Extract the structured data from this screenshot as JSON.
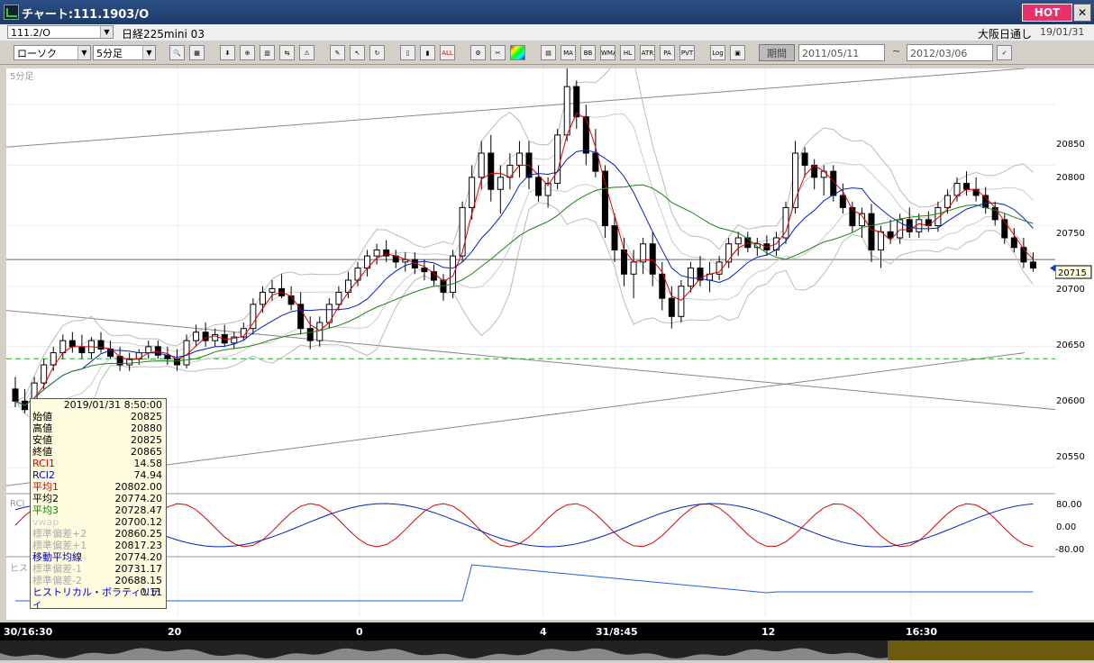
{
  "window": {
    "title": "チャート:111.1903/O",
    "hot_label": "HOT",
    "close_glyph": "✕"
  },
  "header": {
    "symbol_code": "111.2/O",
    "instrument_name": "日経225mini 03",
    "session": "大阪日通し",
    "date": "19/01/31"
  },
  "toolbar": {
    "chart_type": "ローソク",
    "period": "5分足",
    "buttons": [
      "MA",
      "BB",
      "WMA",
      "HL",
      "ATR",
      "PA",
      "PVT",
      "Log",
      "ALL"
    ],
    "period_button": "期間",
    "date_from": "2011/05/11",
    "date_to": "2012/03/06",
    "tilde": "~"
  },
  "chart": {
    "panel_label": "5分足",
    "price_ticks": [
      "20850",
      "20800",
      "20750",
      "20700",
      "20650",
      "20600",
      "20550"
    ],
    "current_price": "20715",
    "rci_label": "RCI",
    "rci_ticks": [
      "80.00",
      "0.00",
      "-80.00"
    ],
    "hv_label": "ヒストリカル",
    "time_labels": [
      "30/16:30",
      "20",
      "0",
      "4",
      "31/8:45",
      "12",
      "16:30"
    ]
  },
  "info": {
    "timestamp": "2019/01/31  8:50:00",
    "rows": [
      {
        "label": "始値",
        "value": "20825",
        "color": "#000000"
      },
      {
        "label": "高値",
        "value": "20880",
        "color": "#000000"
      },
      {
        "label": "安値",
        "value": "20825",
        "color": "#000000"
      },
      {
        "label": "終値",
        "value": "20865",
        "color": "#000000"
      },
      {
        "label": "RCI1",
        "value": "14.58",
        "color": "#cc0000"
      },
      {
        "label": "RCI2",
        "value": "74.94",
        "color": "#0000cc"
      },
      {
        "label": "平均1",
        "value": "20802.00",
        "color": "#cc0000"
      },
      {
        "label": "平均2",
        "value": "20774.20",
        "color": "#000000"
      },
      {
        "label": "平均3",
        "value": "20728.47",
        "color": "#008800"
      },
      {
        "label": "vwap",
        "value": "20700.12",
        "color": "#cccccc"
      },
      {
        "label": "標準偏差+2",
        "value": "20860.25",
        "color": "#aaaaaa"
      },
      {
        "label": "標準偏差+1",
        "value": "20817.23",
        "color": "#aaaaaa"
      },
      {
        "label": "移動平均線",
        "value": "20774.20",
        "color": "#0000aa"
      },
      {
        "label": "標準偏差-1",
        "value": "20731.17",
        "color": "#aaaaaa"
      },
      {
        "label": "標準偏差-2",
        "value": "20688.15",
        "color": "#aaaaaa"
      },
      {
        "label": "ヒストリカル・ボラティリティ",
        "value": "0.11",
        "color": "#0000cc"
      }
    ]
  },
  "chart_data": {
    "type": "candlestick",
    "ylim": [
      20530,
      20880
    ],
    "candles": [
      [
        20615,
        20625,
        20600,
        20605
      ],
      [
        20605,
        20615,
        20595,
        20598
      ],
      [
        20598,
        20625,
        20595,
        20620
      ],
      [
        20620,
        20640,
        20615,
        20635
      ],
      [
        20635,
        20650,
        20630,
        20645
      ],
      [
        20645,
        20660,
        20640,
        20655
      ],
      [
        20655,
        20662,
        20645,
        20650
      ],
      [
        20650,
        20660,
        20640,
        20645
      ],
      [
        20645,
        20658,
        20640,
        20655
      ],
      [
        20655,
        20662,
        20645,
        20648
      ],
      [
        20648,
        20655,
        20640,
        20642
      ],
      [
        20642,
        20650,
        20630,
        20635
      ],
      [
        20635,
        20645,
        20630,
        20640
      ],
      [
        20640,
        20648,
        20635,
        20645
      ],
      [
        20645,
        20655,
        20640,
        20650
      ],
      [
        20650,
        20655,
        20640,
        20643
      ],
      [
        20643,
        20650,
        20635,
        20640
      ],
      [
        20640,
        20648,
        20630,
        20635
      ],
      [
        20635,
        20660,
        20632,
        20655
      ],
      [
        20655,
        20668,
        20650,
        20662
      ],
      [
        20662,
        20670,
        20650,
        20655
      ],
      [
        20655,
        20665,
        20650,
        20660
      ],
      [
        20660,
        20668,
        20650,
        20653
      ],
      [
        20653,
        20662,
        20648,
        20658
      ],
      [
        20658,
        20670,
        20655,
        20665
      ],
      [
        20665,
        20690,
        20660,
        20685
      ],
      [
        20685,
        20700,
        20678,
        20695
      ],
      [
        20695,
        20705,
        20688,
        20698
      ],
      [
        20698,
        20710,
        20690,
        20692
      ],
      [
        20692,
        20700,
        20680,
        20685
      ],
      [
        20685,
        20695,
        20660,
        20665
      ],
      [
        20665,
        20675,
        20648,
        20655
      ],
      [
        20655,
        20675,
        20650,
        20670
      ],
      [
        20670,
        20690,
        20665,
        20685
      ],
      [
        20685,
        20700,
        20680,
        20695
      ],
      [
        20695,
        20712,
        20690,
        20705
      ],
      [
        20705,
        20720,
        20700,
        20715
      ],
      [
        20715,
        20730,
        20708,
        20725
      ],
      [
        20725,
        20735,
        20718,
        20730
      ],
      [
        20730,
        20738,
        20720,
        20725
      ],
      [
        20725,
        20730,
        20715,
        20720
      ],
      [
        20720,
        20728,
        20712,
        20722
      ],
      [
        20722,
        20728,
        20710,
        20715
      ],
      [
        20715,
        20722,
        20705,
        20712
      ],
      [
        20712,
        20718,
        20700,
        20705
      ],
      [
        20705,
        20710,
        20688,
        20695
      ],
      [
        20695,
        20730,
        20690,
        20725
      ],
      [
        20725,
        20770,
        20720,
        20765
      ],
      [
        20765,
        20800,
        20755,
        20790
      ],
      [
        20790,
        20820,
        20780,
        20810
      ],
      [
        20810,
        20825,
        20770,
        20780
      ],
      [
        20780,
        20800,
        20760,
        20790
      ],
      [
        20790,
        20810,
        20780,
        20800
      ],
      [
        20800,
        20820,
        20790,
        20810
      ],
      [
        20810,
        20820,
        20780,
        20790
      ],
      [
        20790,
        20800,
        20770,
        20775
      ],
      [
        20775,
        20790,
        20765,
        20785
      ],
      [
        20785,
        20830,
        20780,
        20825
      ],
      [
        20825,
        20880,
        20820,
        20865
      ],
      [
        20865,
        20870,
        20830,
        20840
      ],
      [
        20840,
        20850,
        20800,
        20810
      ],
      [
        20810,
        20830,
        20790,
        20795
      ],
      [
        20795,
        20800,
        20740,
        20750
      ],
      [
        20750,
        20760,
        20720,
        20730
      ],
      [
        20730,
        20740,
        20700,
        20710
      ],
      [
        20710,
        20730,
        20690,
        20720
      ],
      [
        20720,
        20740,
        20710,
        20735
      ],
      [
        20735,
        20745,
        20700,
        20710
      ],
      [
        20710,
        20720,
        20680,
        20690
      ],
      [
        20690,
        20700,
        20665,
        20675
      ],
      [
        20675,
        20705,
        20670,
        20700
      ],
      [
        20700,
        20720,
        20695,
        20715
      ],
      [
        20715,
        20725,
        20700,
        20705
      ],
      [
        20705,
        20720,
        20695,
        20710
      ],
      [
        20710,
        20725,
        20705,
        20720
      ],
      [
        20720,
        20740,
        20715,
        20735
      ],
      [
        20735,
        20745,
        20725,
        20740
      ],
      [
        20740,
        20745,
        20728,
        20732
      ],
      [
        20732,
        20740,
        20725,
        20735
      ],
      [
        20735,
        20742,
        20725,
        20730
      ],
      [
        20730,
        20745,
        20725,
        20740
      ],
      [
        20740,
        20770,
        20735,
        20765
      ],
      [
        20765,
        20820,
        20760,
        20810
      ],
      [
        20810,
        20815,
        20790,
        20800
      ],
      [
        20800,
        20805,
        20780,
        20790
      ],
      [
        20790,
        20800,
        20775,
        20795
      ],
      [
        20795,
        20800,
        20770,
        20775
      ],
      [
        20775,
        20785,
        20760,
        20765
      ],
      [
        20765,
        20770,
        20745,
        20750
      ],
      [
        20750,
        20765,
        20740,
        20760
      ],
      [
        20760,
        20768,
        20720,
        20730
      ],
      [
        20730,
        20750,
        20715,
        20745
      ],
      [
        20745,
        20755,
        20735,
        20740
      ],
      [
        20740,
        20760,
        20735,
        20755
      ],
      [
        20755,
        20765,
        20740,
        20745
      ],
      [
        20745,
        20760,
        20740,
        20755
      ],
      [
        20755,
        20762,
        20745,
        20750
      ],
      [
        20750,
        20770,
        20745,
        20765
      ],
      [
        20765,
        20780,
        20760,
        20775
      ],
      [
        20775,
        20790,
        20770,
        20785
      ],
      [
        20785,
        20795,
        20775,
        20780
      ],
      [
        20780,
        20790,
        20770,
        20775
      ],
      [
        20775,
        20782,
        20760,
        20765
      ],
      [
        20765,
        20770,
        20750,
        20755
      ],
      [
        20755,
        20760,
        20735,
        20740
      ],
      [
        20740,
        20748,
        20728,
        20732
      ],
      [
        20732,
        20740,
        20715,
        20720
      ],
      [
        20720,
        20728,
        20712,
        20715
      ]
    ]
  }
}
